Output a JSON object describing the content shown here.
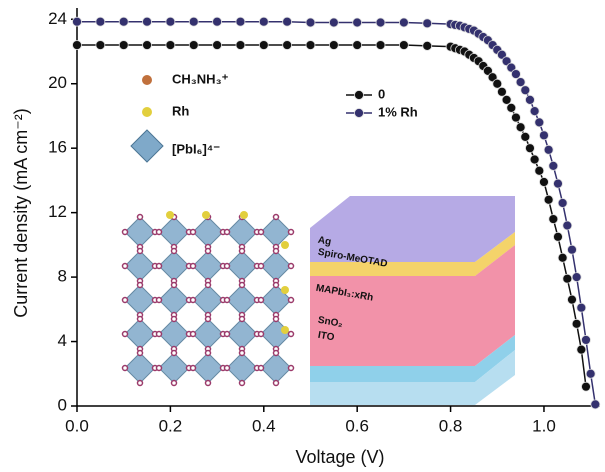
{
  "chart_data": {
    "type": "line",
    "xlabel": "Voltage (V)",
    "ylabel": "Current density (mA cm⁻²)",
    "x": [
      0,
      0.05,
      0.1,
      0.15,
      0.2,
      0.25,
      0.3,
      0.35,
      0.4,
      0.45,
      0.5,
      0.55,
      0.6,
      0.65,
      0.7,
      0.75,
      0.8,
      0.81,
      0.82,
      0.83,
      0.84,
      0.85,
      0.86,
      0.87,
      0.88,
      0.89,
      0.9,
      0.91,
      0.92,
      0.93,
      0.94,
      0.95,
      0.96,
      0.97,
      0.98,
      0.99,
      1.0,
      1.01,
      1.02,
      1.03,
      1.04,
      1.05,
      1.06,
      1.07,
      1.08,
      1.09,
      1.1,
      1.11
    ],
    "series": [
      {
        "name": "0",
        "color": "#111111",
        "values": [
          22.4,
          22.4,
          22.4,
          22.4,
          22.4,
          22.4,
          22.4,
          22.4,
          22.4,
          22.4,
          22.4,
          22.4,
          22.4,
          22.4,
          22.4,
          22.35,
          22.3,
          22.2,
          22.1,
          22.0,
          21.8,
          21.6,
          21.4,
          21.1,
          20.8,
          20.4,
          20.0,
          19.5,
          19.0,
          18.5,
          17.9,
          17.3,
          16.7,
          16.0,
          15.3,
          14.6,
          13.9,
          12.8,
          11.6,
          10.5,
          9.2,
          7.9,
          6.6,
          5.1,
          3.5,
          1.2,
          null,
          null
        ]
      },
      {
        "name": "1% Rh",
        "color": "#34316e",
        "values": [
          23.85,
          23.85,
          23.85,
          23.85,
          23.85,
          23.85,
          23.85,
          23.85,
          23.85,
          23.85,
          23.8,
          23.8,
          23.8,
          23.8,
          23.8,
          23.75,
          23.7,
          23.65,
          23.6,
          23.5,
          23.4,
          23.3,
          23.1,
          22.9,
          22.7,
          22.4,
          22.1,
          21.8,
          21.4,
          21.0,
          20.6,
          20.1,
          19.6,
          19.0,
          18.3,
          17.6,
          16.8,
          15.9,
          14.9,
          13.8,
          12.6,
          11.2,
          9.7,
          8.0,
          6.1,
          4.1,
          2.0,
          0.1
        ]
      }
    ],
    "xlim": [
      0,
      1.12
    ],
    "ylim": [
      0,
      24.7
    ],
    "xticks": [
      {
        "value": 0,
        "label": "0.0"
      },
      0.2,
      0.4,
      0.6,
      0.8,
      {
        "value": 1,
        "label": "1.0"
      }
    ],
    "yticks": [
      0,
      4,
      8,
      12,
      16,
      20,
      24
    ],
    "annotations": [
      "CH₃NH₃⁺",
      "Rh",
      "[PbI₆]⁴⁻",
      "Ag",
      "Spiro-MeOTAD",
      "MAPbI₃:xRh",
      "SnO₂",
      "ITO"
    ]
  }
}
